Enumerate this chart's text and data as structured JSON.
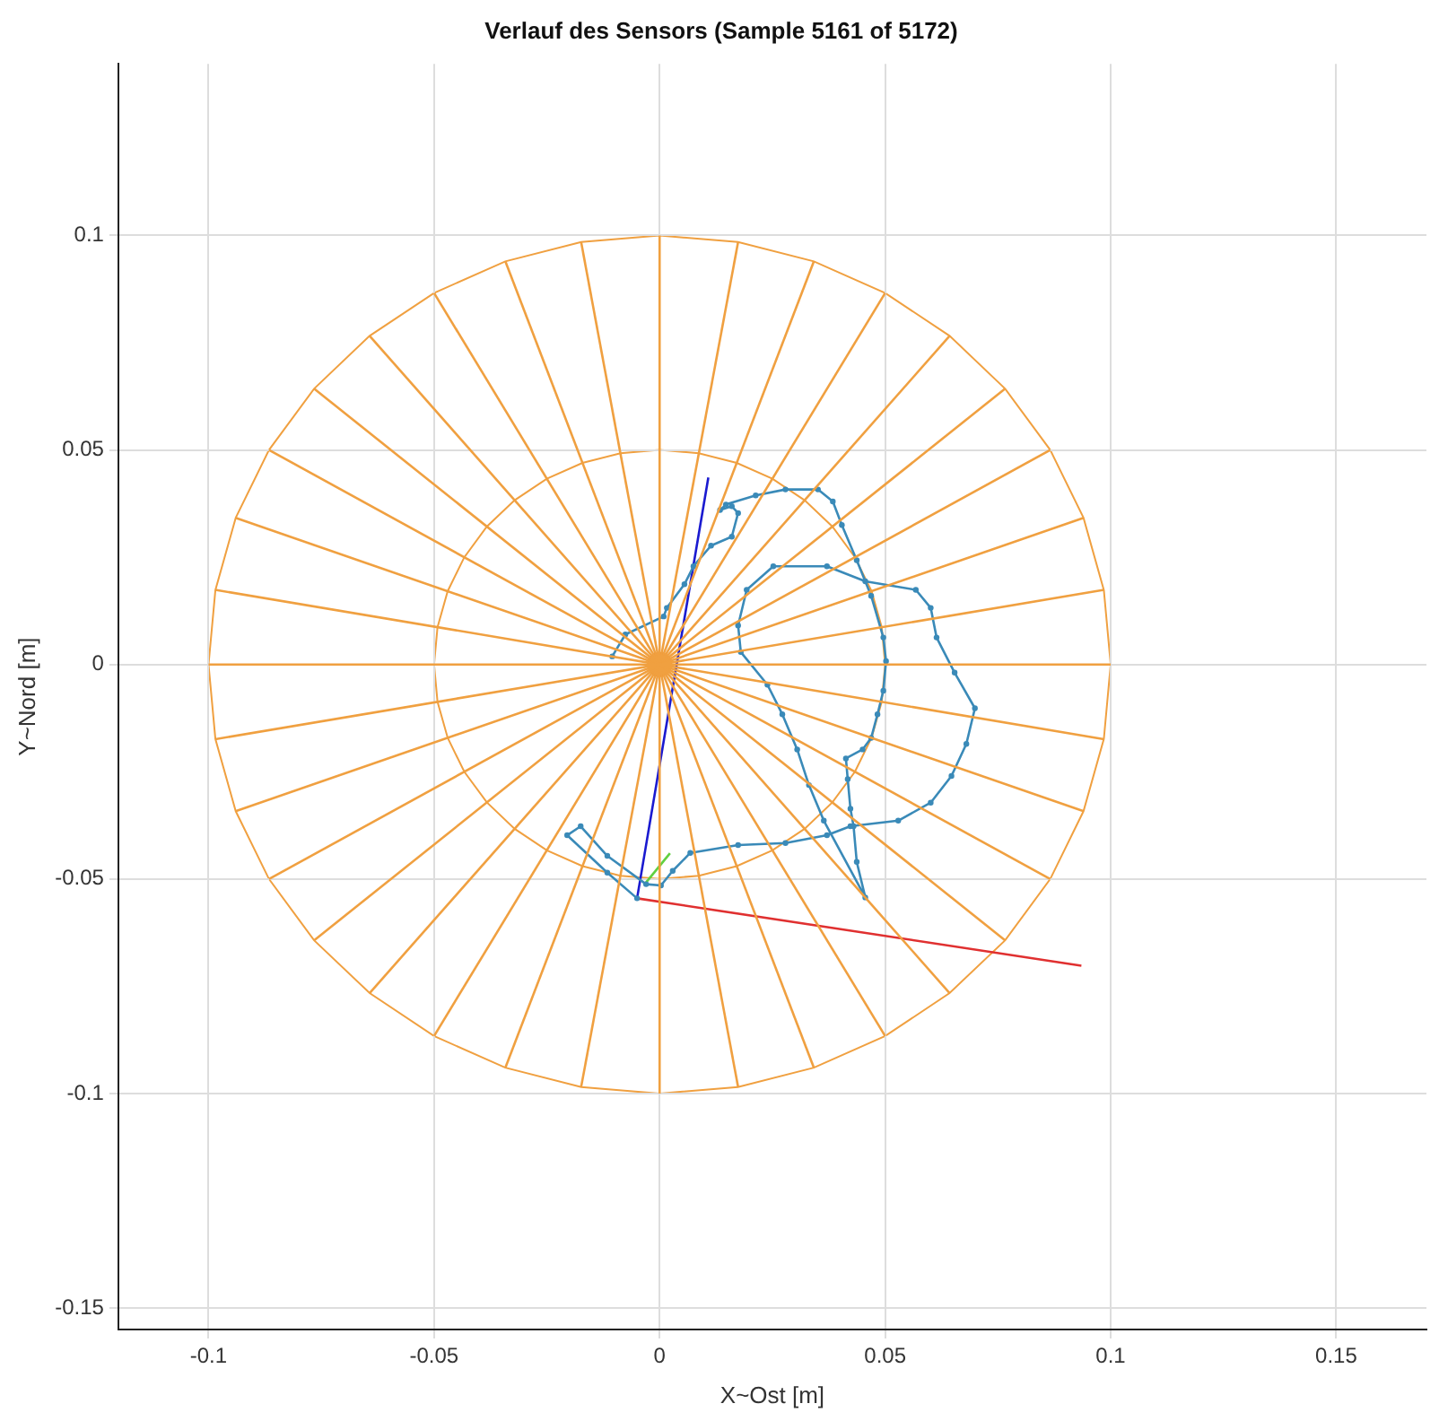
{
  "chart_data": {
    "type": "line",
    "title": "Verlauf des Sensors (Sample 5161 of 5172)",
    "xlabel": "X~Ost [m]",
    "ylabel": "Y~Nord [m]",
    "xlim": [
      -0.12,
      0.17
    ],
    "ylim": [
      -0.155,
      0.14
    ],
    "xticks": [
      -0.1,
      -0.05,
      0,
      0.05,
      0.1,
      0.15
    ],
    "yticks": [
      -0.15,
      -0.1,
      -0.05,
      0,
      0.05,
      0.1
    ],
    "grid": true,
    "marker": "none",
    "series": [
      {
        "color": "#f0a040",
        "x": [
          -0.1,
          0.1
        ],
        "values": [
          0,
          0
        ]
      },
      {
        "color": "#f0a040",
        "x": [
          -0.0985,
          0.0985
        ],
        "values": [
          -0.0174,
          0.0174
        ]
      },
      {
        "color": "#f0a040",
        "x": [
          -0.094,
          0.094
        ],
        "values": [
          -0.0342,
          0.0342
        ]
      },
      {
        "color": "#f0a040",
        "x": [
          -0.0866,
          0.0866
        ],
        "values": [
          -0.05,
          0.05
        ]
      },
      {
        "color": "#f0a040",
        "x": [
          -0.0766,
          0.0766
        ],
        "values": [
          -0.0643,
          0.0643
        ]
      },
      {
        "color": "#f0a040",
        "x": [
          -0.0643,
          0.0643
        ],
        "values": [
          -0.0766,
          0.0766
        ]
      },
      {
        "color": "#f0a040",
        "x": [
          -0.05,
          0.05
        ],
        "values": [
          -0.0866,
          0.0866
        ]
      },
      {
        "color": "#f0a040",
        "x": [
          -0.0342,
          0.0342
        ],
        "values": [
          -0.094,
          0.094
        ]
      },
      {
        "color": "#f0a040",
        "x": [
          -0.0174,
          0.0174
        ],
        "values": [
          -0.0985,
          0.0985
        ]
      },
      {
        "color": "#f0a040",
        "x": [
          0,
          0
        ],
        "values": [
          -0.1,
          0.1
        ]
      },
      {
        "color": "#f0a040",
        "x": [
          -0.0174,
          0.0174
        ],
        "values": [
          0.0985,
          -0.0985
        ]
      },
      {
        "color": "#f0a040",
        "x": [
          -0.0342,
          0.0342
        ],
        "values": [
          0.094,
          -0.094
        ]
      },
      {
        "color": "#f0a040",
        "x": [
          -0.05,
          0.05
        ],
        "values": [
          0.0866,
          -0.0866
        ]
      },
      {
        "color": "#f0a040",
        "x": [
          -0.0643,
          0.0643
        ],
        "values": [
          0.0766,
          -0.0766
        ]
      },
      {
        "color": "#f0a040",
        "x": [
          -0.0766,
          0.0766
        ],
        "values": [
          0.0643,
          -0.0643
        ]
      },
      {
        "color": "#f0a040",
        "x": [
          -0.0866,
          0.0866
        ],
        "values": [
          0.05,
          -0.05
        ]
      },
      {
        "color": "#f0a040",
        "x": [
          -0.094,
          0.094
        ],
        "values": [
          0.0342,
          -0.0342
        ]
      },
      {
        "color": "#f0a040",
        "x": [
          -0.0985,
          0.0985
        ],
        "values": [
          0.0174,
          -0.0174
        ]
      },
      {
        "color": "#3a8ab8",
        "marker": "circle",
        "x": [
          -0.0105,
          -0.0076,
          0.0009,
          0.0016,
          0.0055,
          0.0075,
          0.0114,
          0.016,
          0.0174,
          0.016,
          0.0134,
          0.0147,
          0.0213,
          0.0279,
          0.0351,
          0.0384,
          0.0404,
          0.0437,
          0.0469,
          0.0496,
          0.0502,
          0.0496,
          0.0483,
          0.0469,
          0.045,
          0.0413,
          0.0417,
          0.0423,
          0.043,
          0.0437,
          0.0456,
          0.0364,
          0.0331,
          0.0305,
          0.0272,
          0.0239,
          0.018,
          0.0174,
          0.0193,
          0.0252,
          0.0371,
          0.0456,
          0.0568,
          0.0601,
          0.0614,
          0.0654,
          0.0699,
          0.068,
          0.0647,
          0.0601,
          0.0529,
          0.0423,
          0.0371,
          0.0279,
          0.0174,
          0.0068,
          0.0029,
          0.0003,
          -0.003,
          -0.0116,
          -0.0175,
          -0.0205,
          -0.0116,
          -0.005
        ],
        "values": [
          0.0019,
          0.007,
          0.0112,
          0.0132,
          0.0187,
          0.0229,
          0.0277,
          0.0298,
          0.0353,
          0.0369,
          0.036,
          0.0373,
          0.0394,
          0.0408,
          0.0408,
          0.038,
          0.0325,
          0.0243,
          0.016,
          0.0063,
          0.0008,
          -0.0061,
          -0.0116,
          -0.0171,
          -0.0198,
          -0.0219,
          -0.0267,
          -0.0336,
          -0.0377,
          -0.046,
          -0.0543,
          -0.0364,
          -0.0281,
          -0.0198,
          -0.0116,
          -0.0047,
          0.0029,
          0.0091,
          0.0174,
          0.0229,
          0.0229,
          0.0194,
          0.0174,
          0.0132,
          0.0063,
          -0.0019,
          -0.0102,
          -0.0185,
          -0.026,
          -0.0322,
          -0.0364,
          -0.0377,
          -0.0398,
          -0.0416,
          -0.0421,
          -0.0439,
          -0.0481,
          -0.0515,
          -0.0512,
          -0.0446,
          -0.0377,
          -0.0398,
          -0.0485,
          -0.0545
        ]
      },
      {
        "color": "#1a1ad0",
        "x": [
          -0.005,
          0.0108
        ],
        "values": [
          -0.0545,
          0.0436
        ]
      },
      {
        "color": "#e03030",
        "x": [
          -0.005,
          0.0935
        ],
        "values": [
          -0.0545,
          -0.0702
        ]
      },
      {
        "color": "#60d040",
        "x": [
          -0.003,
          0.0023
        ],
        "values": [
          -0.0508,
          -0.044
        ]
      },
      {
        "type": "scatter",
        "color": "#f57f17",
        "marker": "circle",
        "x": [
          0
        ],
        "values": [
          0
        ]
      }
    ]
  }
}
